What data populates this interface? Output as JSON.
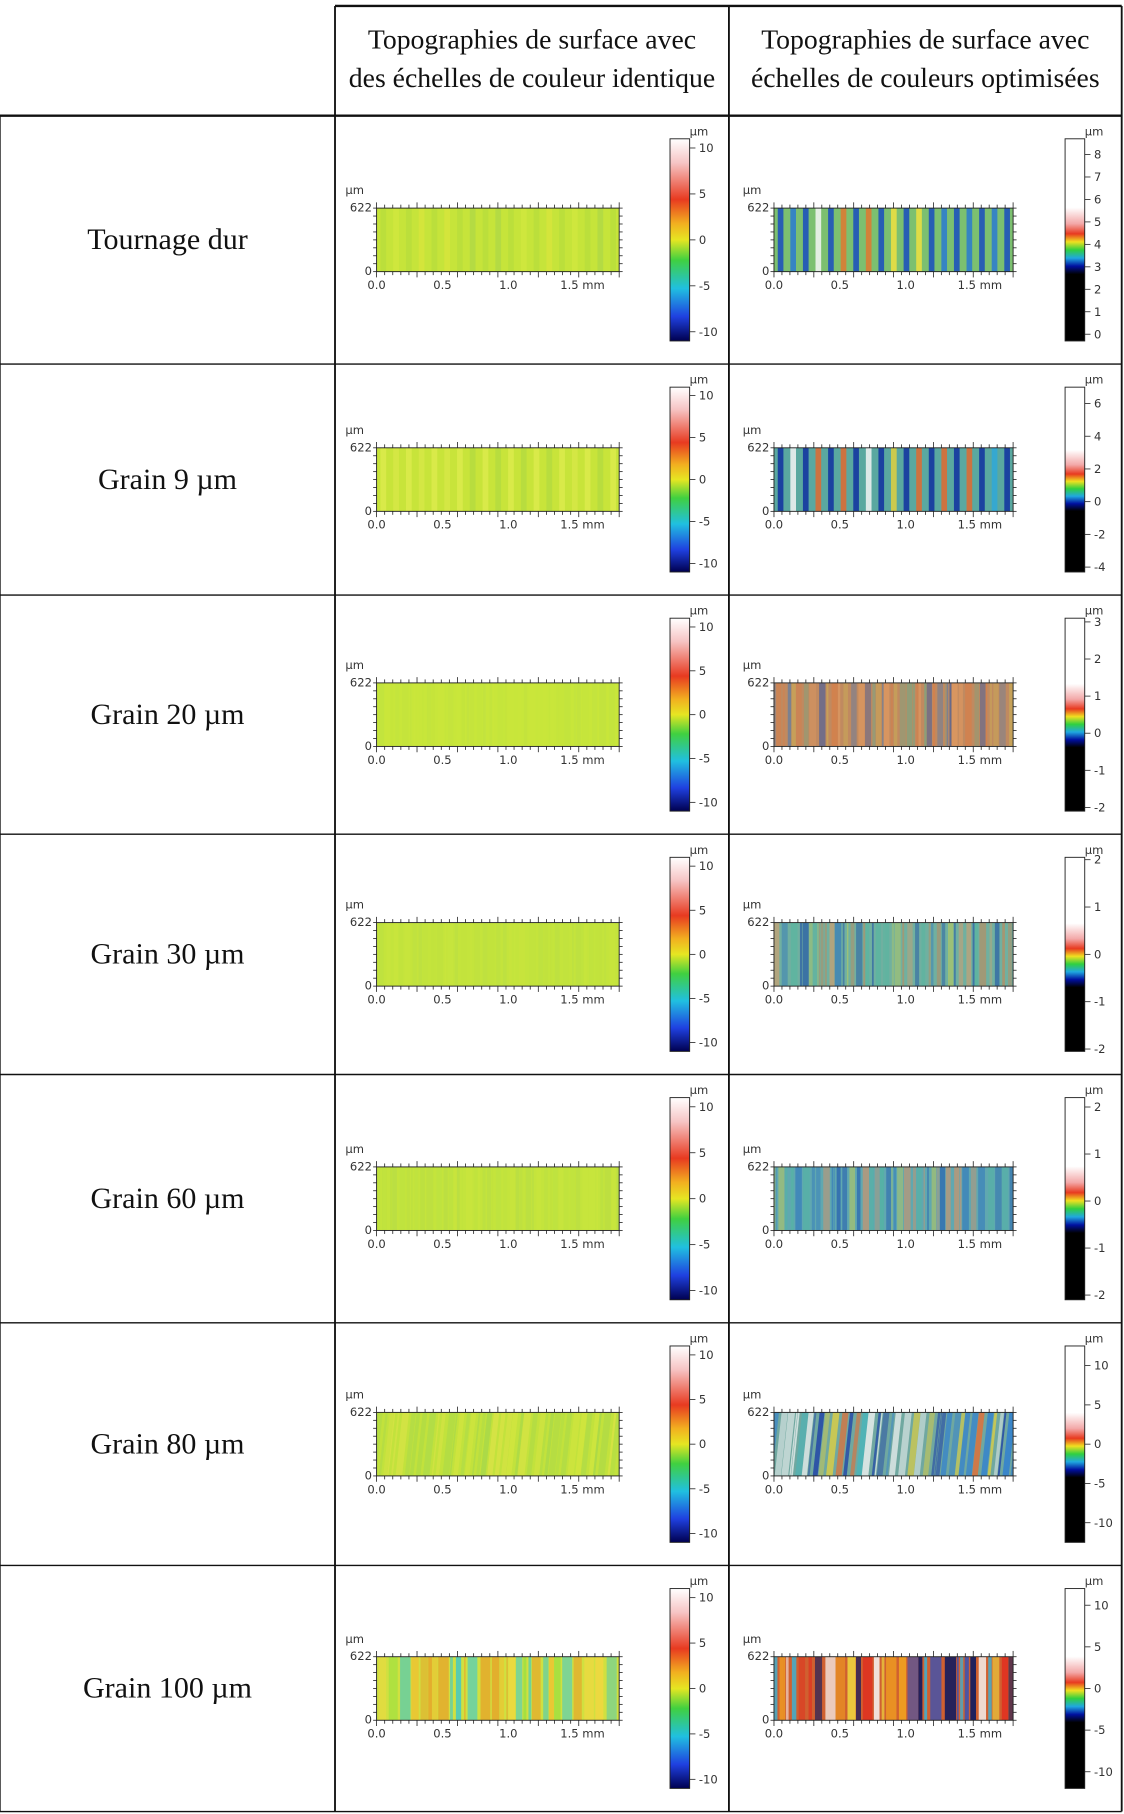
{
  "header": {
    "identical": [
      "Topographies de surface avec",
      "des échelles de couleur identique"
    ],
    "optimized": [
      "Topographies de surface avec",
      "échelles de couleurs optimisées"
    ]
  },
  "axis": {
    "y_unit": "µm",
    "y_max": "622",
    "y_min": "0",
    "x_ticks": [
      "0.0",
      "0.5",
      "1.0",
      "1.5 mm"
    ],
    "colorbar_unit": "µm"
  },
  "rows": [
    {
      "label": "Tournage dur",
      "identical": {
        "colorbar_ticks": [
          10,
          5,
          0,
          -5,
          -10
        ],
        "colorbar_lim": [
          -11,
          11
        ]
      },
      "optimized": {
        "colorbar_ticks": [
          8,
          7,
          6,
          5,
          4,
          3,
          2,
          1,
          0
        ],
        "colorbar_lim": [
          -0.3,
          8.7
        ]
      }
    },
    {
      "label": "Grain 9 µm",
      "identical": {
        "colorbar_ticks": [
          10,
          5,
          0,
          -5,
          -10
        ],
        "colorbar_lim": [
          -11,
          11
        ]
      },
      "optimized": {
        "colorbar_ticks": [
          6,
          4,
          2,
          0,
          -2,
          -4
        ],
        "colorbar_lim": [
          -4.3,
          7
        ]
      }
    },
    {
      "label": "Grain 20 µm",
      "identical": {
        "colorbar_ticks": [
          10,
          5,
          0,
          -5,
          -10
        ],
        "colorbar_lim": [
          -11,
          11
        ]
      },
      "optimized": {
        "colorbar_ticks": [
          3,
          2,
          1,
          0,
          -1,
          -2
        ],
        "colorbar_lim": [
          -2.1,
          3.1
        ]
      }
    },
    {
      "label": "Grain 30 µm",
      "identical": {
        "colorbar_ticks": [
          10,
          5,
          0,
          -5,
          -10
        ],
        "colorbar_lim": [
          -11,
          11
        ]
      },
      "optimized": {
        "colorbar_ticks": [
          2,
          1,
          0,
          -1,
          -2
        ],
        "colorbar_lim": [
          -2.05,
          2.05
        ]
      }
    },
    {
      "label": "Grain 60 µm",
      "identical": {
        "colorbar_ticks": [
          10,
          5,
          0,
          -5,
          -10
        ],
        "colorbar_lim": [
          -11,
          11
        ]
      },
      "optimized": {
        "colorbar_ticks": [
          2,
          1,
          0,
          -1,
          -2
        ],
        "colorbar_lim": [
          -2.1,
          2.2
        ]
      }
    },
    {
      "label": "Grain 80 µm",
      "identical": {
        "colorbar_ticks": [
          10,
          5,
          0,
          -5,
          -10
        ],
        "colorbar_lim": [
          -11,
          11
        ]
      },
      "optimized": {
        "colorbar_ticks": [
          10,
          5,
          0,
          -5,
          -10
        ],
        "colorbar_lim": [
          -12.5,
          12.5
        ]
      }
    },
    {
      "label": "Grain 100 µm",
      "identical": {
        "colorbar_ticks": [
          10,
          5,
          0,
          -5,
          -10
        ],
        "colorbar_lim": [
          -11,
          11
        ]
      },
      "optimized": {
        "colorbar_ticks": [
          10,
          5,
          0,
          -5,
          -10
        ],
        "colorbar_lim": [
          -12,
          12
        ]
      }
    }
  ]
}
